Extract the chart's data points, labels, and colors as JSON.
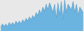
{
  "values": [
    3,
    5,
    3,
    5,
    3,
    6,
    4,
    6,
    4,
    7,
    5,
    7,
    5,
    8,
    6,
    9,
    7,
    10,
    8,
    11,
    9,
    13,
    11,
    15,
    12,
    17,
    14,
    19,
    15,
    20,
    17,
    13,
    19,
    9,
    20,
    11,
    21,
    8,
    22,
    13,
    19,
    17,
    15,
    21,
    13,
    19,
    11,
    17,
    15,
    13
  ],
  "fill_color": "#6cb4e0",
  "line_color": "#5aa0cc",
  "bg_color": "#e8e8e8"
}
